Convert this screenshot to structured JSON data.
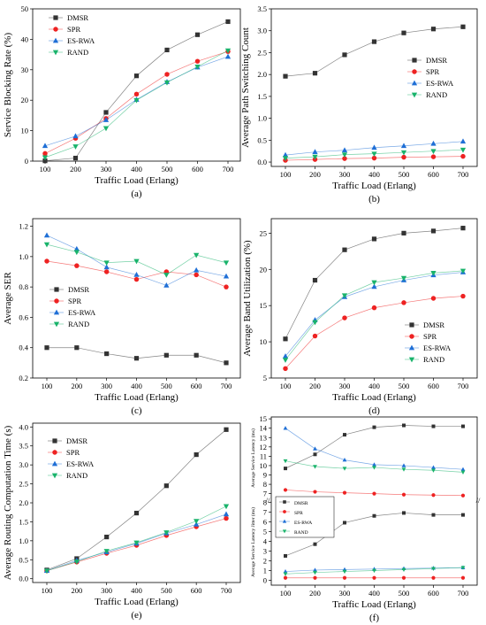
{
  "colors": {
    "DMSR": "#333333",
    "SPR": "#ee2222",
    "ES-RWA": "#1f6fd6",
    "RAND": "#19b36b"
  },
  "chart_data": [
    {
      "type": "line",
      "caption": "(a)",
      "xlabel": "Traffic Load (Erlang)",
      "ylabel": "Service Blocking Rate (%)",
      "categories": [
        100,
        200,
        300,
        400,
        500,
        600,
        700
      ],
      "ylim": [
        0,
        50
      ],
      "yticks": [
        0,
        10,
        20,
        30,
        40,
        50
      ],
      "legend": "top-left",
      "series": [
        {
          "name": "DMSR",
          "marker": "square",
          "values": [
            0.1,
            1.0,
            16.0,
            28.0,
            36.5,
            41.5,
            45.8
          ]
        },
        {
          "name": "SPR",
          "marker": "circle",
          "values": [
            2.5,
            7.5,
            14.0,
            22.0,
            28.5,
            32.8,
            36.0
          ]
        },
        {
          "name": "ES-RWA",
          "marker": "triangle-up",
          "values": [
            5.0,
            8.2,
            13.5,
            20.2,
            26.0,
            30.8,
            34.3
          ]
        },
        {
          "name": "RAND",
          "marker": "triangle-down",
          "values": [
            1.2,
            4.8,
            10.8,
            20.0,
            25.8,
            31.0,
            36.3
          ]
        }
      ]
    },
    {
      "type": "line",
      "caption": "(b)",
      "xlabel": "Traffic Load (Erlang)",
      "ylabel": "Average Path Switching Count",
      "categories": [
        100,
        200,
        300,
        400,
        500,
        600,
        700
      ],
      "ylim": [
        -0.1,
        3.5
      ],
      "yticks": [
        0.0,
        0.5,
        1.0,
        1.5,
        2.0,
        2.5,
        3.0,
        3.5
      ],
      "yticklabels": [
        "0.0",
        "0.5",
        "1.0",
        "1.5",
        "2.0",
        "2.5",
        "3.0",
        "3.5"
      ],
      "legend": "right-middle",
      "series": [
        {
          "name": "DMSR",
          "marker": "square",
          "values": [
            1.96,
            2.03,
            2.45,
            2.75,
            2.95,
            3.04,
            3.09
          ]
        },
        {
          "name": "SPR",
          "marker": "circle",
          "values": [
            0.04,
            0.06,
            0.08,
            0.09,
            0.11,
            0.12,
            0.13
          ]
        },
        {
          "name": "ES-RWA",
          "marker": "triangle-up",
          "values": [
            0.16,
            0.23,
            0.27,
            0.33,
            0.37,
            0.42,
            0.47
          ]
        },
        {
          "name": "RAND",
          "marker": "triangle-down",
          "values": [
            0.09,
            0.12,
            0.17,
            0.19,
            0.22,
            0.25,
            0.28
          ]
        }
      ]
    },
    {
      "type": "line",
      "caption": "(c)",
      "xlabel": "Traffic Load (Erlang)",
      "ylabel": "Average SER",
      "categories": [
        100,
        200,
        300,
        400,
        500,
        600,
        700
      ],
      "ylim": [
        0.2,
        1.25
      ],
      "yticks": [
        0.2,
        0.4,
        0.6,
        0.8,
        1.0,
        1.2
      ],
      "yticklabels": [
        "0.2",
        "0.4",
        "0.6",
        "0.8",
        "1.0",
        "1.2"
      ],
      "legend": "middle-left",
      "series": [
        {
          "name": "DMSR",
          "marker": "square",
          "values": [
            0.4,
            0.4,
            0.36,
            0.33,
            0.35,
            0.35,
            0.3
          ]
        },
        {
          "name": "SPR",
          "marker": "circle",
          "values": [
            0.97,
            0.94,
            0.9,
            0.85,
            0.9,
            0.88,
            0.8
          ]
        },
        {
          "name": "ES-RWA",
          "marker": "triangle-up",
          "values": [
            1.14,
            1.05,
            0.93,
            0.88,
            0.81,
            0.91,
            0.87
          ]
        },
        {
          "name": "RAND",
          "marker": "triangle-down",
          "values": [
            1.08,
            1.03,
            0.96,
            0.97,
            0.88,
            1.01,
            0.96
          ]
        }
      ]
    },
    {
      "type": "line",
      "caption": "(d)",
      "xlabel": "Traffic Load (Erlang)",
      "ylabel": "Average Band Utilization (%)",
      "categories": [
        100,
        200,
        300,
        400,
        500,
        600,
        700
      ],
      "ylim": [
        5,
        27
      ],
      "yticks": [
        5,
        10,
        15,
        20,
        25
      ],
      "legend": "bottom-right",
      "series": [
        {
          "name": "DMSR",
          "marker": "square",
          "values": [
            10.4,
            18.5,
            22.7,
            24.2,
            25.0,
            25.3,
            25.7
          ]
        },
        {
          "name": "SPR",
          "marker": "circle",
          "values": [
            6.3,
            10.8,
            13.3,
            14.7,
            15.4,
            16.0,
            16.3
          ]
        },
        {
          "name": "ES-RWA",
          "marker": "triangle-up",
          "values": [
            8.0,
            13.0,
            16.2,
            17.6,
            18.5,
            19.2,
            19.6
          ]
        },
        {
          "name": "RAND",
          "marker": "triangle-down",
          "values": [
            7.5,
            12.7,
            16.4,
            18.2,
            18.8,
            19.5,
            19.8
          ]
        }
      ]
    },
    {
      "type": "line",
      "caption": "(e)",
      "xlabel": "Traffic Load (Erlang)",
      "ylabel": "Average Routing Computation Time (s)",
      "categories": [
        100,
        200,
        300,
        400,
        500,
        600,
        700
      ],
      "ylim": [
        -0.1,
        4.1
      ],
      "yticks": [
        0.0,
        0.5,
        1.0,
        1.5,
        2.0,
        2.5,
        3.0,
        3.5,
        4.0
      ],
      "yticklabels": [
        "0.0",
        "0.5",
        "1.0",
        "1.5",
        "2.0",
        "2.5",
        "3.0",
        "3.5",
        "4.0"
      ],
      "legend": "top-left",
      "series": [
        {
          "name": "DMSR",
          "marker": "square",
          "values": [
            0.23,
            0.53,
            1.1,
            1.73,
            2.45,
            3.27,
            3.93
          ]
        },
        {
          "name": "SPR",
          "marker": "circle",
          "values": [
            0.21,
            0.44,
            0.67,
            0.88,
            1.14,
            1.37,
            1.59
          ]
        },
        {
          "name": "ES-RWA",
          "marker": "triangle-up",
          "values": [
            0.21,
            0.48,
            0.7,
            0.93,
            1.2,
            1.43,
            1.7
          ]
        },
        {
          "name": "RAND",
          "marker": "triangle-down",
          "values": [
            0.21,
            0.45,
            0.73,
            0.95,
            1.22,
            1.52,
            1.91
          ]
        }
      ]
    },
    {
      "type": "line",
      "caption": "(f)",
      "xlabel": "Traffic Load (Erlang)",
      "categories": [
        100,
        200,
        300,
        400,
        500,
        600,
        700
      ],
      "legend": "bottom-left",
      "panels": [
        {
          "ylabel": "Average Service Latency (ms)",
          "ylim": [
            6.4,
            15.2
          ],
          "yticks": [
            7,
            8,
            9,
            10,
            11,
            12,
            13,
            14,
            15
          ],
          "series": [
            {
              "name": "DMSR",
              "marker": "square",
              "values": [
                9.7,
                11.2,
                13.3,
                14.1,
                14.3,
                14.2,
                14.2
              ]
            },
            {
              "name": "SPR",
              "marker": "circle",
              "values": [
                7.4,
                7.2,
                7.1,
                7.0,
                6.9,
                6.85,
                6.8
              ]
            },
            {
              "name": "ES-RWA",
              "marker": "triangle-up",
              "values": [
                14.0,
                11.8,
                10.6,
                10.1,
                10.0,
                9.8,
                9.6
              ]
            },
            {
              "name": "RAND",
              "marker": "triangle-down",
              "values": [
                10.5,
                9.9,
                9.7,
                9.8,
                9.6,
                9.5,
                9.3
              ]
            }
          ]
        },
        {
          "ylabel": "Average Service Latency Jitter (ms)",
          "ylim": [
            -0.5,
            8.3
          ],
          "yticks": [
            0,
            1,
            2,
            3,
            4,
            5,
            6,
            7,
            8
          ],
          "series": [
            {
              "name": "DMSR",
              "marker": "square",
              "values": [
                2.5,
                3.7,
                5.9,
                6.6,
                6.9,
                6.7,
                6.7
              ]
            },
            {
              "name": "SPR",
              "marker": "circle",
              "values": [
                0.25,
                0.25,
                0.25,
                0.25,
                0.25,
                0.25,
                0.25
              ]
            },
            {
              "name": "ES-RWA",
              "marker": "triangle-up",
              "values": [
                0.9,
                1.05,
                1.1,
                1.15,
                1.2,
                1.25,
                1.3
              ]
            },
            {
              "name": "RAND",
              "marker": "triangle-down",
              "values": [
                0.65,
                0.8,
                0.9,
                1.0,
                1.1,
                1.2,
                1.3
              ]
            }
          ]
        }
      ]
    }
  ]
}
